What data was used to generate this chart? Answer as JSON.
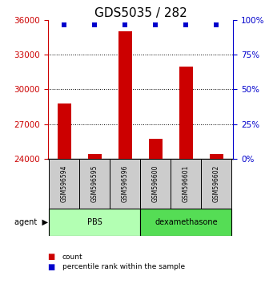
{
  "title": "GDS5035 / 282",
  "samples": [
    "GSM596594",
    "GSM596595",
    "GSM596596",
    "GSM596600",
    "GSM596601",
    "GSM596602"
  ],
  "counts": [
    28800,
    24400,
    35000,
    25700,
    32000,
    24400
  ],
  "ylim_left": [
    24000,
    36000
  ],
  "ylim_right": [
    0,
    100
  ],
  "yticks_left": [
    24000,
    27000,
    30000,
    33000,
    36000
  ],
  "yticks_right": [
    0,
    25,
    50,
    75,
    100
  ],
  "bar_color": "#cc0000",
  "dot_color": "#0000cc",
  "agent_groups": [
    {
      "label": "PBS",
      "start": 0,
      "end": 2,
      "color": "#b3ffb3"
    },
    {
      "label": "dexamethasone",
      "start": 3,
      "end": 5,
      "color": "#55dd55"
    }
  ],
  "sample_box_color": "#cccccc",
  "agent_label": "agent",
  "legend_count_color": "#cc0000",
  "legend_pct_color": "#0000cc",
  "title_fontsize": 11,
  "tick_fontsize": 7.5,
  "bar_width": 0.45
}
